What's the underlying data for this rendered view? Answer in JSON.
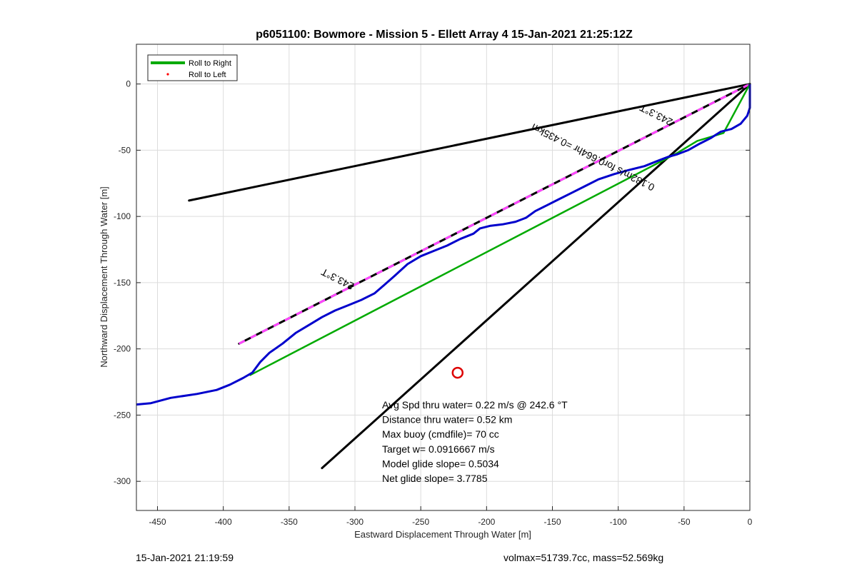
{
  "chart_data": {
    "type": "line",
    "title": "p6051100: Bowmore - Mission 5 - Ellett Array 4 15-Jan-2021 21:25:12Z",
    "xlabel": "Eastward Displacement Through Water [m]",
    "ylabel": "Northward Displacement Through Water [m]",
    "xlim": [
      -466,
      0
    ],
    "ylim": [
      -322,
      30
    ],
    "xticks": [
      -450,
      -400,
      -350,
      -300,
      -250,
      -200,
      -150,
      -100,
      -50,
      0
    ],
    "yticks": [
      0,
      -50,
      -100,
      -150,
      -200,
      -250,
      -300
    ],
    "xtick_labels": [
      "-450",
      "-400",
      "-350",
      "-300",
      "-250",
      "-200",
      "-150",
      "-100",
      "-50",
      "0"
    ],
    "ytick_labels": [
      "0",
      "-50",
      "-100",
      "-150",
      "-200",
      "-250",
      "-300"
    ],
    "grid": true,
    "legend": {
      "placement": "top-left",
      "entries": [
        {
          "label": "Roll to Right",
          "color": "#00aa00",
          "style": "line"
        },
        {
          "label": "Roll to Left",
          "color": "#ff0000",
          "style": "dot"
        }
      ]
    },
    "series": [
      {
        "color": "#0000cc",
        "values": [
          [
            -466,
            -242
          ],
          [
            -455,
            -241
          ],
          [
            -440,
            -237
          ],
          [
            -420,
            -234
          ],
          [
            -405,
            -231
          ],
          [
            -395,
            -227
          ],
          [
            -385,
            -222
          ],
          [
            -378,
            -218
          ],
          [
            -372,
            -210
          ],
          [
            -365,
            -203
          ],
          [
            -355,
            -196
          ],
          [
            -345,
            -188
          ],
          [
            -335,
            -182
          ],
          [
            -325,
            -176
          ],
          [
            -315,
            -171
          ],
          [
            -305,
            -167
          ],
          [
            -295,
            -163
          ],
          [
            -285,
            -158
          ],
          [
            -278,
            -152
          ],
          [
            -270,
            -145
          ],
          [
            -260,
            -136
          ],
          [
            -250,
            -130
          ],
          [
            -240,
            -126
          ],
          [
            -230,
            -122
          ],
          [
            -220,
            -117
          ],
          [
            -210,
            -113
          ],
          [
            -205,
            -109
          ],
          [
            -197,
            -107
          ],
          [
            -188,
            -106
          ],
          [
            -178,
            -104
          ],
          [
            -170,
            -101
          ],
          [
            -163,
            -96
          ],
          [
            -155,
            -92
          ],
          [
            -145,
            -87
          ],
          [
            -135,
            -82
          ],
          [
            -125,
            -77
          ],
          [
            -115,
            -72
          ],
          [
            -103,
            -68
          ],
          [
            -92,
            -65
          ],
          [
            -80,
            -62
          ],
          [
            -70,
            -58
          ],
          [
            -62,
            -55
          ],
          [
            -55,
            -53
          ],
          [
            -47,
            -50
          ],
          [
            -38,
            -45
          ],
          [
            -30,
            -41
          ],
          [
            -22,
            -36
          ],
          [
            -14,
            -34
          ],
          [
            -7,
            -30
          ],
          [
            -2,
            -24
          ],
          [
            0,
            -18
          ],
          [
            0,
            -8
          ],
          [
            0,
            0
          ]
        ]
      },
      {
        "name": "Roll to Right",
        "color": "#00aa00",
        "values": [
          [
            -380,
            -220
          ],
          [
            -55,
            -52
          ],
          [
            -40,
            -43
          ],
          [
            -20,
            -37
          ],
          [
            0,
            0
          ]
        ]
      }
    ],
    "lines": [
      {
        "color": "#000000",
        "points": [
          [
            -426,
            -88
          ],
          [
            0,
            0
          ]
        ]
      },
      {
        "color": "#000000",
        "points": [
          [
            -325,
            -290
          ],
          [
            0,
            0
          ]
        ]
      },
      {
        "color": "#000000",
        "dash_color": "#ff44ff",
        "points": [
          [
            -388,
            -196
          ],
          [
            0,
            0
          ]
        ]
      }
    ],
    "markers": [
      {
        "shape": "circle",
        "color": "#dd0000",
        "x": -222,
        "y": -218
      }
    ],
    "annotations": [
      {
        "text": "243.3°T",
        "x": -312,
        "y": -145,
        "rotation": 206.9
      },
      {
        "text": "243.3°T",
        "x": -70,
        "y": -21,
        "rotation": 206.9
      },
      {
        "text": "0.182m/s for0.664hr =0.435km",
        "x": -118,
        "y": -53,
        "rotation": 206.9
      }
    ],
    "info_text": [
      "Avg Spd thru water=  0.22 m/s @ 242.6 °T",
      "Distance thru water=  0.52 km",
      "Max buoy (cmdfile)= 70 cc",
      "Target w= 0.0916667 m/s",
      "Model glide slope= 0.5034",
      "Net glide slope= 3.7785"
    ]
  },
  "footer": {
    "left": "15-Jan-2021 21:19:59",
    "right": "volmax=51739.7cc, mass=52.569kg"
  }
}
